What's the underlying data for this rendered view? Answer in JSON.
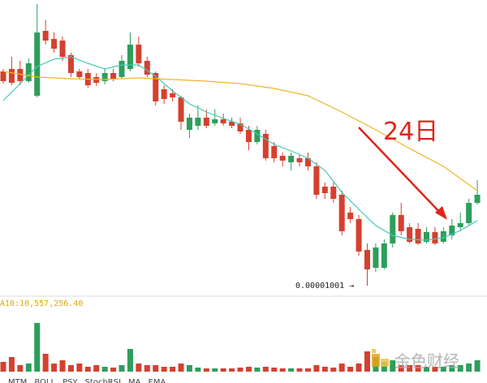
{
  "chart_data": {
    "type": "candlestick",
    "categories": [
      null,
      null,
      null,
      null,
      null,
      null,
      null,
      null,
      null,
      null,
      null,
      null,
      null,
      null,
      null,
      null,
      null,
      null,
      null,
      null,
      null,
      null,
      null,
      null,
      null,
      null,
      null,
      null,
      null,
      null,
      null,
      null,
      null,
      null,
      null,
      null,
      null,
      null,
      null,
      null,
      null,
      null,
      null,
      null,
      null,
      null,
      null,
      null,
      null,
      null,
      null,
      null,
      null,
      null,
      null,
      null,
      null
    ],
    "open": [
      1.265e-05,
      1.268e-05,
      1.268e-05,
      1.253e-05,
      1.235e-05,
      1.315e-05,
      1.305e-05,
      1.303e-05,
      1.285e-05,
      1.265e-05,
      1.263e-05,
      1.258e-05,
      1.253e-05,
      1.263e-05,
      1.258e-05,
      1.268e-05,
      1.298e-05,
      1.278e-05,
      1.263e-05,
      1.243e-05,
      1.238e-05,
      1.233e-05,
      1.193e-05,
      1.198e-05,
      1.208e-05,
      1.201e-05,
      1.206e-05,
      1.203e-05,
      1.201e-05,
      1.193e-05,
      1.178e-05,
      1.188e-05,
      1.173e-05,
      1.161e-05,
      1.153e-05,
      1.158e-05,
      1.158e-05,
      1.148e-05,
      1.123e-05,
      1.123e-05,
      1.113e-05,
      1.091e-05,
      1.083e-05,
      1.045e-05,
      1.023e-05,
      1.023e-05,
      1.053e-05,
      1.088e-05,
      1.073e-05,
      1.071e-05,
      1.055e-05,
      1.067e-05,
      1.055e-05,
      1.063e-05,
      1.073e-05,
      1.078e-05,
      1.103e-05
    ],
    "high": [
      1.268e-05,
      1.283e-05,
      1.278e-05,
      1.281e-05,
      1.348e-05,
      1.328e-05,
      1.313e-05,
      1.308e-05,
      1.288e-05,
      1.268e-05,
      1.268e-05,
      1.263e-05,
      1.268e-05,
      1.268e-05,
      1.285e-05,
      1.313e-05,
      1.308e-05,
      1.283e-05,
      1.265e-05,
      1.248e-05,
      1.243e-05,
      1.235e-05,
      1.213e-05,
      1.223e-05,
      1.218e-05,
      1.218e-05,
      1.213e-05,
      1.208e-05,
      1.208e-05,
      1.198e-05,
      1.198e-05,
      1.193e-05,
      1.178e-05,
      1.165e-05,
      1.165e-05,
      1.163e-05,
      1.165e-05,
      1.153e-05,
      1.128e-05,
      1.128e-05,
      1.118e-05,
      1.098e-05,
      1.088e-05,
      1.053e-05,
      1.053e-05,
      1.058e-05,
      1.091e-05,
      1.103e-05,
      1.078e-05,
      1.078e-05,
      1.073e-05,
      1.073e-05,
      1.073e-05,
      1.083e-05,
      1.091e-05,
      1.108e-05,
      1.131e-05
    ],
    "low": [
      1.25e-05,
      1.248e-05,
      1.248e-05,
      1.251e-05,
      1.233e-05,
      1.298e-05,
      1.288e-05,
      1.278e-05,
      1.258e-05,
      1.255e-05,
      1.245e-05,
      1.247e-05,
      1.249e-05,
      1.253e-05,
      1.256e-05,
      1.265e-05,
      1.271e-05,
      1.258e-05,
      1.223e-05,
      1.225e-05,
      1.228e-05,
      1.193e-05,
      1.183e-05,
      1.193e-05,
      1.195e-05,
      1.198e-05,
      1.198e-05,
      1.195e-05,
      1.188e-05,
      1.168e-05,
      1.175e-05,
      1.155e-05,
      1.153e-05,
      1.148e-05,
      1.143e-05,
      1.148e-05,
      1.143e-05,
      1.108e-05,
      1.108e-05,
      1.103e-05,
      1.063e-05,
      1.078e-05,
      1.038e-05,
      1.001e-05,
      1.018e-05,
      1.021e-05,
      1.048e-05,
      1.063e-05,
      1.053e-05,
      1.051e-05,
      1.053e-05,
      1.051e-05,
      1.053e-05,
      1.058e-05,
      1.068e-05,
      1.075e-05,
      1.101e-05
    ],
    "close": [
      1.253e-05,
      1.251e-05,
      1.253e-05,
      1.275e-05,
      1.313e-05,
      1.303e-05,
      1.293e-05,
      1.283e-05,
      1.263e-05,
      1.258e-05,
      1.248e-05,
      1.251e-05,
      1.263e-05,
      1.255e-05,
      1.278e-05,
      1.298e-05,
      1.275e-05,
      1.261e-05,
      1.228e-05,
      1.231e-05,
      1.233e-05,
      1.203e-05,
      1.208e-05,
      1.208e-05,
      1.198e-05,
      1.206e-05,
      1.201e-05,
      1.198e-05,
      1.191e-05,
      1.178e-05,
      1.193e-05,
      1.158e-05,
      1.158e-05,
      1.155e-05,
      1.161e-05,
      1.153e-05,
      1.148e-05,
      1.113e-05,
      1.115e-05,
      1.108e-05,
      1.068e-05,
      1.083e-05,
      1.043e-05,
      1.021e-05,
      1.048e-05,
      1.053e-05,
      1.088e-05,
      1.068e-05,
      1.055e-05,
      1.053e-05,
      1.067e-05,
      1.053e-05,
      1.068e-05,
      1.075e-05,
      1.078e-05,
      1.103e-05,
      1.113e-05
    ],
    "up_color": "#2e9e5b",
    "down_color": "#d5402f",
    "ylim": [
      9.93e-06,
      1.353e-05
    ],
    "lines": [
      {
        "color": "#45c8b8",
        "x": [
          0,
          2,
          4,
          6,
          8,
          10,
          12,
          14,
          16,
          18,
          20,
          22,
          24,
          26,
          28,
          30,
          32,
          34,
          36,
          38,
          40,
          42,
          44,
          46,
          48,
          50,
          52,
          54,
          56
        ],
        "values": [
          1.229e-05,
          1.25e-05,
          1.271e-05,
          1.28e-05,
          1.283e-05,
          1.275e-05,
          1.268e-05,
          1.273e-05,
          1.273e-05,
          1.259e-05,
          1.241e-05,
          1.225e-05,
          1.215e-05,
          1.207e-05,
          1.2e-05,
          1.188e-05,
          1.175e-05,
          1.167e-05,
          1.158e-05,
          1.143e-05,
          1.116e-05,
          1.095e-05,
          1.075e-05,
          1.063e-05,
          1.058e-05,
          1.057e-05,
          1.06e-05,
          1.069e-05,
          1.081e-05
        ]
      },
      {
        "color": "#f0b429",
        "x": [
          0,
          4,
          8,
          12,
          16,
          20,
          24,
          28,
          32,
          36,
          40,
          44,
          48,
          52,
          56
        ],
        "values": [
          1.265e-05,
          1.258e-05,
          1.256e-05,
          1.255e-05,
          1.257e-05,
          1.255e-05,
          1.253e-05,
          1.25e-05,
          1.244e-05,
          1.235e-05,
          1.215e-05,
          1.193e-05,
          1.17e-05,
          1.148e-05,
          1.118e-05
        ]
      }
    ],
    "volume": [
      15600000,
      23400000,
      10400000,
      13000000,
      78000000,
      28600000,
      13000000,
      18200000,
      10400000,
      13000000,
      7800000,
      10400000,
      7800000,
      6500000,
      10400000,
      36400000,
      13000000,
      10400000,
      10400000,
      7800000,
      7800000,
      13000000,
      10400000,
      6500000,
      5200000,
      5200000,
      5200000,
      5200000,
      6500000,
      7800000,
      6500000,
      7800000,
      6500000,
      5200000,
      5200000,
      5200000,
      5200000,
      10400000,
      7800000,
      6500000,
      13000000,
      7800000,
      13000000,
      32500000,
      23400000,
      15600000,
      18200000,
      10400000,
      10400000,
      10400000,
      7800000,
      7800000,
      7800000,
      10400000,
      10400000,
      13000000,
      18200000
    ],
    "volume_ylim": [
      0,
      117000000
    ],
    "volume_label": "A10:10,557,256.40",
    "low_annotation": "0.00001001 →",
    "annotation": "24日",
    "annotation_color": "#e0241b",
    "tabs": [
      "MTM",
      "BOLL",
      "PSY",
      "StochRSI",
      "MA",
      "EMA"
    ],
    "watermark": "金色财经"
  }
}
